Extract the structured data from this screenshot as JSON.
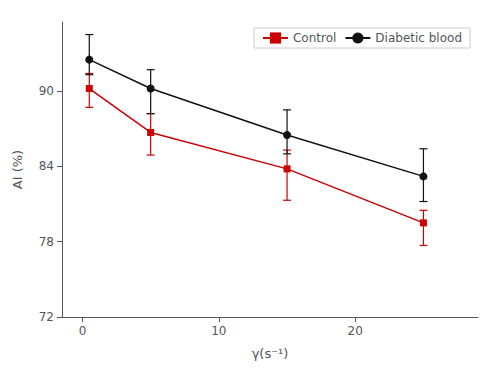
{
  "chart_data": {
    "type": "line",
    "xlabel": "γ(s⁻¹)",
    "ylabel": "AI (%)",
    "x": [
      0.5,
      5,
      15,
      25
    ],
    "series": [
      {
        "name": "Control",
        "color": "#cc0000",
        "marker": "square",
        "line_style": "solid",
        "values": [
          90.2,
          86.7,
          83.8,
          79.5
        ],
        "yerr_lower": [
          1.5,
          1.8,
          2.5,
          1.8
        ],
        "yerr_upper": [
          1.2,
          1.5,
          1.5,
          1.0
        ]
      },
      {
        "name": "Diabetic blood",
        "color": "#111111",
        "marker": "circle",
        "line_style": "solid",
        "values": [
          92.5,
          90.2,
          86.5,
          83.2
        ],
        "yerr_lower": [
          1.2,
          2.0,
          1.5,
          2.0
        ],
        "yerr_upper": [
          2.0,
          1.5,
          2.0,
          2.2
        ]
      }
    ],
    "xlim": [
      -1.5,
      29
    ],
    "ylim": [
      72,
      95.5
    ],
    "xticks": [
      0,
      10,
      20
    ],
    "yticks": [
      72,
      78,
      84,
      90
    ],
    "grid": false,
    "legend": "upper right"
  }
}
